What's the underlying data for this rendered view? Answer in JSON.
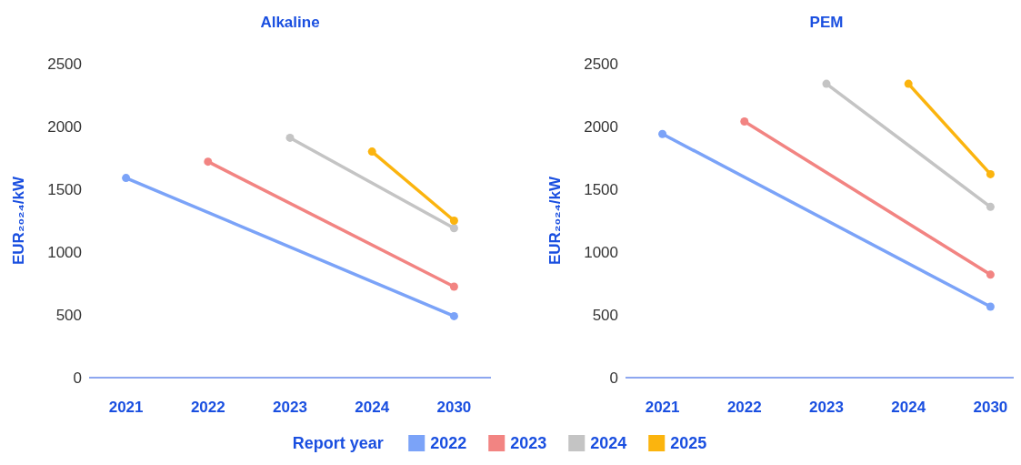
{
  "chart_data": [
    {
      "type": "line",
      "title": "Alkaline",
      "ylabel": "EUR₂₀₂₄/kW",
      "categories": [
        "2021",
        "2022",
        "2023",
        "2024",
        "2030"
      ],
      "ylim": [
        0,
        2500
      ],
      "yticks": [
        0,
        500,
        1000,
        1500,
        2000,
        2500
      ],
      "grid": false,
      "marker": "circle",
      "legend": "bottom",
      "legend_title": "Report year",
      "series": [
        {
          "name": "2022",
          "color": "#7ba3f8",
          "values": [
            1590,
            null,
            null,
            null,
            490
          ]
        },
        {
          "name": "2023",
          "color": "#f28482",
          "values": [
            null,
            1720,
            null,
            null,
            725
          ]
        },
        {
          "name": "2024",
          "color": "#c4c4c4",
          "values": [
            null,
            null,
            1910,
            null,
            1190
          ]
        },
        {
          "name": "2025",
          "color": "#fbb40e",
          "values": [
            null,
            null,
            null,
            1800,
            1250
          ]
        }
      ]
    },
    {
      "type": "line",
      "title": "PEM",
      "ylabel": "EUR₂₀₂₄/kW",
      "categories": [
        "2021",
        "2022",
        "2023",
        "2024",
        "2030"
      ],
      "ylim": [
        0,
        2500
      ],
      "yticks": [
        0,
        500,
        1000,
        1500,
        2000,
        2500
      ],
      "grid": false,
      "marker": "circle",
      "series": [
        {
          "name": "2022",
          "color": "#7ba3f8",
          "values": [
            1940,
            null,
            null,
            null,
            565
          ]
        },
        {
          "name": "2023",
          "color": "#f28482",
          "values": [
            null,
            2040,
            null,
            null,
            820
          ]
        },
        {
          "name": "2024",
          "color": "#c4c4c4",
          "values": [
            null,
            null,
            2340,
            null,
            1360
          ]
        },
        {
          "name": "2025",
          "color": "#fbb40e",
          "values": [
            null,
            null,
            null,
            2340,
            1620
          ]
        }
      ]
    }
  ]
}
